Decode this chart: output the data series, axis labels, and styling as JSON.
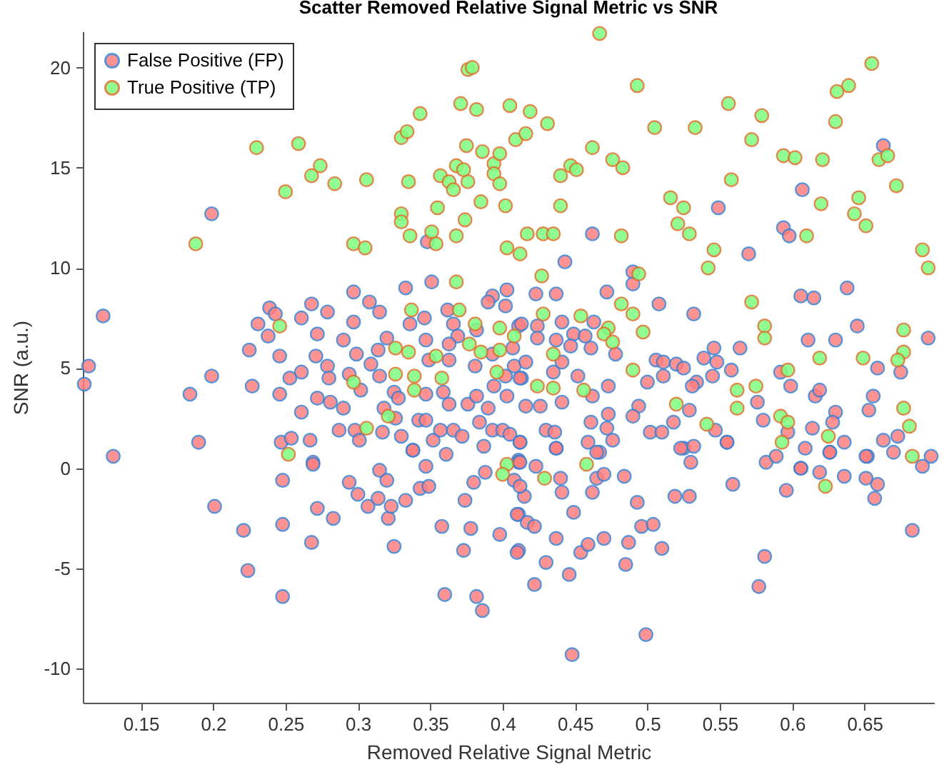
{
  "chart_data": {
    "type": "scatter",
    "title": "Scatter Removed Relative Signal Metric vs SNR",
    "xlabel": "Removed Relative Signal Metric",
    "ylabel": "SNR (a.u.)",
    "xlim": [
      0.11,
      0.698
    ],
    "ylim": [
      -11.7,
      21.8
    ],
    "xticks": [
      0.15,
      0.2,
      0.25,
      0.3,
      0.35,
      0.4,
      0.45,
      0.5,
      0.55,
      0.6,
      0.65
    ],
    "yticks": [
      -10,
      -5,
      0,
      5,
      10,
      15,
      20
    ],
    "grid": false,
    "legend": "top left",
    "marker": "circle",
    "series": [
      {
        "name": "False Positive (FP)",
        "color": "#ff7f7f",
        "x": [
          0.663,
          0.199,
          0.124,
          0.114,
          0.111,
          0.131,
          0.184,
          0.199,
          0.19,
          0.225,
          0.227,
          0.231,
          0.239,
          0.243,
          0.238,
          0.246,
          0.246,
          0.247,
          0.253,
          0.254,
          0.261,
          0.261,
          0.261,
          0.267,
          0.268,
          0.272,
          0.272,
          0.271,
          0.269,
          0.279,
          0.279,
          0.28,
          0.281,
          0.287,
          0.29,
          0.29,
          0.297,
          0.297,
          0.294,
          0.298,
          0.299,
          0.301,
          0.302,
          0.308,
          0.309,
          0.315,
          0.314,
          0.315,
          0.317,
          0.318,
          0.32,
          0.325,
          0.326,
          0.328,
          0.33,
          0.333,
          0.336,
          0.338,
          0.342,
          0.351,
          0.348,
          0.346,
          0.347,
          0.349,
          0.347,
          0.347,
          0.352,
          0.357,
          0.362,
          0.366,
          0.369,
          0.363,
          0.363,
          0.359,
          0.363,
          0.366,
          0.372,
          0.376,
          0.381,
          0.382,
          0.384,
          0.382,
          0.393,
          0.39,
          0.403,
          0.402,
          0.393,
          0.394,
          0.39,
          0.393,
          0.387,
          0.402,
          0.403,
          0.4,
          0.405,
          0.412,
          0.411,
          0.413,
          0.411,
          0.408,
          0.407,
          0.201,
          0.221,
          0.224,
          0.248,
          0.248,
          0.248,
          0.269,
          0.268,
          0.272,
          0.283,
          0.294,
          0.3,
          0.307,
          0.314,
          0.315,
          0.32,
          0.321,
          0.325,
          0.323,
          0.333,
          0.338,
          0.347,
          0.343,
          0.349,
          0.358,
          0.36,
          0.374,
          0.373,
          0.378,
          0.38,
          0.382,
          0.386,
          0.388,
          0.398,
          0.408,
          0.411,
          0.411,
          0.415,
          0.411,
          0.361,
          0.462,
          0.443,
          0.49,
          0.49,
          0.472,
          0.508,
          0.532,
          0.549,
          0.57,
          0.594,
          0.598,
          0.607,
          0.606,
          0.615,
          0.638,
          0.645,
          0.63,
          0.611,
          0.694,
          0.437,
          0.423,
          0.441,
          0.463,
          0.413,
          0.424,
          0.424,
          0.449,
          0.457,
          0.437,
          0.447,
          0.461,
          0.478,
          0.506,
          0.511,
          0.52,
          0.525,
          0.539,
          0.546,
          0.548,
          0.558,
          0.564,
          0.545,
          0.534,
          0.511,
          0.5,
          0.452,
          0.441,
          0.416,
          0.412,
          0.435,
          0.426,
          0.416,
          0.441,
          0.462,
          0.473,
          0.494,
          0.49,
          0.473,
          0.461,
          0.472,
          0.476,
          0.459,
          0.43,
          0.436,
          0.412,
          0.437,
          0.467,
          0.502,
          0.51,
          0.518,
          0.529,
          0.531,
          0.525,
          0.532,
          0.555,
          0.547,
          0.576,
          0.58,
          0.599,
          0.592,
          0.597,
          0.614,
          0.609,
          0.616,
          0.619,
          0.63,
          0.628,
          0.636,
          0.626,
          0.652,
          0.653,
          0.656,
          0.659,
          0.675,
          0.663,
          0.67,
          0.673,
          0.696,
          0.69,
          0.582,
          0.606,
          0.589,
          0.423,
          0.44,
          0.441,
          0.449,
          0.41,
          0.417,
          0.422,
          0.41,
          0.437,
          0.43,
          0.422,
          0.446,
          0.448,
          0.454,
          0.459,
          0.47,
          0.487,
          0.485,
          0.496,
          0.504,
          0.51,
          0.493,
          0.499,
          0.519,
          0.529,
          0.53,
          0.523,
          0.559,
          0.555,
          0.581,
          0.577,
          0.596,
          0.606,
          0.619,
          0.626,
          0.636,
          0.651,
          0.657,
          0.659,
          0.651,
          0.683,
          0.462,
          0.465,
          0.47,
          0.484,
          0.465,
          0.437,
          0.412,
          0.412
        ],
        "values": [
          16.1,
          12.7,
          7.6,
          5.1,
          4.2,
          0.6,
          3.7,
          4.6,
          1.3,
          5.9,
          4.1,
          7.2,
          8.0,
          7.7,
          6.6,
          5.6,
          3.7,
          1.3,
          4.5,
          1.5,
          7.5,
          4.8,
          2.8,
          1.4,
          8.2,
          3.5,
          6.7,
          5.6,
          0.3,
          7.8,
          5.1,
          4.5,
          3.3,
          1.9,
          6.4,
          3.0,
          8.8,
          7.3,
          4.7,
          1.9,
          5.7,
          1.4,
          3.9,
          8.3,
          5.2,
          7.8,
          5.9,
          4.6,
          1.8,
          3.0,
          6.5,
          3.8,
          2.5,
          3.5,
          1.6,
          9.0,
          7.2,
          0.9,
          2.4,
          9.3,
          11.3,
          7.5,
          6.4,
          5.4,
          3.7,
          2.4,
          1.4,
          1.9,
          7.9,
          7.2,
          6.6,
          6.2,
          5.4,
          3.8,
          3.2,
          1.9,
          1.6,
          3.2,
          5.1,
          3.6,
          2.3,
          6.9,
          8.6,
          8.3,
          8.9,
          8.1,
          5.7,
          4.1,
          3.0,
          1.9,
          1.1,
          4.6,
          3.6,
          1.9,
          1.7,
          1.3,
          0.4,
          4.5,
          7.1,
          5.1,
          6.0,
          -1.9,
          -3.1,
          -5.1,
          -2.8,
          -6.4,
          -0.6,
          0.2,
          -3.7,
          -2.0,
          -2.5,
          -0.7,
          -1.3,
          -1.9,
          -1.5,
          -0.1,
          -0.6,
          -2.5,
          -3.9,
          -1.9,
          -1.6,
          0.9,
          0.1,
          -1.0,
          -0.9,
          -2.9,
          -6.3,
          -1.6,
          -4.1,
          -3.0,
          -0.7,
          -6.4,
          -7.1,
          -0.2,
          -3.3,
          -0.6,
          -4.1,
          -2.3,
          -1.4,
          0.3,
          0.7,
          11.7,
          10.3,
          9.8,
          9.2,
          8.8,
          8.2,
          7.7,
          13.0,
          10.7,
          12.0,
          11.6,
          13.9,
          8.6,
          8.5,
          9.0,
          7.1,
          6.4,
          6.4,
          6.5,
          8.7,
          8.7,
          7.3,
          7.3,
          7.2,
          7.1,
          6.5,
          6.7,
          6.6,
          6.4,
          6.1,
          6.0,
          5.7,
          5.4,
          5.3,
          5.2,
          5.0,
          5.5,
          6.0,
          5.3,
          4.9,
          6.0,
          4.6,
          4.3,
          4.6,
          4.3,
          4.6,
          5.3,
          5.3,
          4.5,
          4.8,
          3.1,
          3.1,
          3.3,
          3.6,
          4.1,
          3.1,
          2.6,
          2.7,
          2.3,
          2.0,
          1.4,
          1.3,
          1.9,
          1.8,
          1.3,
          1.0,
          0.8,
          1.8,
          1.8,
          2.3,
          2.9,
          4.1,
          1.0,
          1.1,
          1.3,
          1.9,
          3.3,
          2.4,
          4.1,
          4.8,
          1.8,
          2.0,
          1.0,
          3.6,
          3.9,
          2.8,
          2.3,
          1.3,
          0.8,
          0.6,
          2.9,
          3.6,
          5.0,
          4.8,
          1.4,
          0.8,
          1.6,
          0.6,
          0.1,
          0.3,
          0.0,
          0.6,
          0.1,
          -0.5,
          -1.2,
          -2.2,
          -2.3,
          -2.7,
          -2.9,
          -4.2,
          -3.5,
          -4.7,
          -5.8,
          -5.3,
          -9.3,
          -4.2,
          -3.8,
          -3.5,
          -3.7,
          -4.8,
          -2.9,
          -2.8,
          -4.0,
          -1.7,
          -8.3,
          -1.4,
          -1.4,
          0.3,
          1.0,
          -0.8,
          1.3,
          -4.4,
          -5.9,
          -1.1,
          0.0,
          -0.2,
          0.8,
          -0.4,
          -0.5,
          -1.5,
          -0.8,
          0.6,
          -3.1,
          -1.2,
          -0.5,
          -0.3,
          -0.4,
          0.8,
          1.0,
          0.3,
          -0.9
        ]
      },
      {
        "name": "True Positive (TP)",
        "color": "#80ff80",
        "x": [
          0.23,
          0.259,
          0.274,
          0.33,
          0.334,
          0.343,
          0.368,
          0.371,
          0.375,
          0.376,
          0.379,
          0.382,
          0.386,
          0.394,
          0.398,
          0.405,
          0.409,
          0.416,
          0.419,
          0.431,
          0.447,
          0.462,
          0.467,
          0.476,
          0.483,
          0.493,
          0.505,
          0.533,
          0.556,
          0.572,
          0.579,
          0.594,
          0.602,
          0.621,
          0.63,
          0.631,
          0.639,
          0.655,
          0.66,
          0.666,
          0.188,
          0.25,
          0.268,
          0.284,
          0.306,
          0.297,
          0.305,
          0.33,
          0.33,
          0.336,
          0.335,
          0.355,
          0.351,
          0.354,
          0.368,
          0.357,
          0.363,
          0.366,
          0.374,
          0.376,
          0.373,
          0.385,
          0.394,
          0.402,
          0.398,
          0.403,
          0.412,
          0.417,
          0.368,
          0.337,
          0.37,
          0.381,
          0.398,
          0.408,
          0.246,
          0.326,
          0.335,
          0.354,
          0.377,
          0.385,
          0.398,
          0.326,
          0.339,
          0.339,
          0.358,
          0.396,
          0.297,
          0.321,
          0.306,
          0.252,
          0.403,
          0.4,
          0.44,
          0.451,
          0.44,
          0.428,
          0.435,
          0.482,
          0.558,
          0.516,
          0.525,
          0.521,
          0.529,
          0.546,
          0.542,
          0.62,
          0.61,
          0.646,
          0.643,
          0.651,
          0.672,
          0.69,
          0.694,
          0.427,
          0.494,
          0.482,
          0.49,
          0.572,
          0.581,
          0.581,
          0.677,
          0.677,
          0.619,
          0.649,
          0.673,
          0.454,
          0.473,
          0.47,
          0.476,
          0.497,
          0.435,
          0.428,
          0.49,
          0.597,
          0.424,
          0.435,
          0.456,
          0.562,
          0.575,
          0.52,
          0.562,
          0.592,
          0.597,
          0.541,
          0.625,
          0.593,
          0.677,
          0.681,
          0.683,
          0.458,
          0.429,
          0.623
        ],
        "values": [
          16.0,
          16.2,
          15.1,
          16.5,
          16.8,
          17.7,
          15.1,
          18.2,
          16.1,
          19.9,
          20.0,
          17.9,
          15.8,
          15.2,
          15.7,
          18.1,
          16.4,
          16.7,
          17.8,
          17.2,
          15.1,
          16.0,
          21.7,
          15.4,
          15.0,
          19.1,
          17.0,
          17.0,
          18.2,
          16.4,
          17.6,
          15.6,
          15.5,
          15.4,
          17.3,
          18.8,
          19.1,
          20.2,
          15.4,
          15.6,
          11.2,
          13.8,
          14.6,
          14.2,
          14.4,
          11.2,
          11.0,
          12.7,
          12.3,
          11.6,
          14.3,
          13.0,
          11.8,
          11.2,
          11.6,
          14.6,
          14.3,
          13.9,
          12.4,
          14.3,
          14.9,
          13.3,
          14.7,
          13.1,
          14.2,
          11.0,
          10.7,
          11.7,
          9.3,
          7.9,
          7.9,
          7.2,
          7.0,
          6.6,
          7.1,
          6.0,
          5.8,
          5.6,
          6.2,
          5.8,
          5.9,
          4.7,
          4.6,
          3.9,
          4.5,
          4.8,
          4.3,
          2.6,
          2.0,
          0.7,
          0.2,
          -0.3,
          14.6,
          14.9,
          13.1,
          11.7,
          11.7,
          11.6,
          14.4,
          13.5,
          13.0,
          12.2,
          11.7,
          10.9,
          10.0,
          13.2,
          11.6,
          13.5,
          12.7,
          12.1,
          14.1,
          10.9,
          10.0,
          9.6,
          9.7,
          8.2,
          7.7,
          8.3,
          7.1,
          6.5,
          6.9,
          5.8,
          5.5,
          5.5,
          5.4,
          7.6,
          7.0,
          6.7,
          6.3,
          6.8,
          5.7,
          7.7,
          4.9,
          4.9,
          4.1,
          4.0,
          3.9,
          3.9,
          4.1,
          3.2,
          3.0,
          2.6,
          2.3,
          2.2,
          1.6,
          1.3,
          3.0,
          2.1,
          0.6,
          0.2,
          -0.5,
          -0.9
        ]
      }
    ]
  }
}
